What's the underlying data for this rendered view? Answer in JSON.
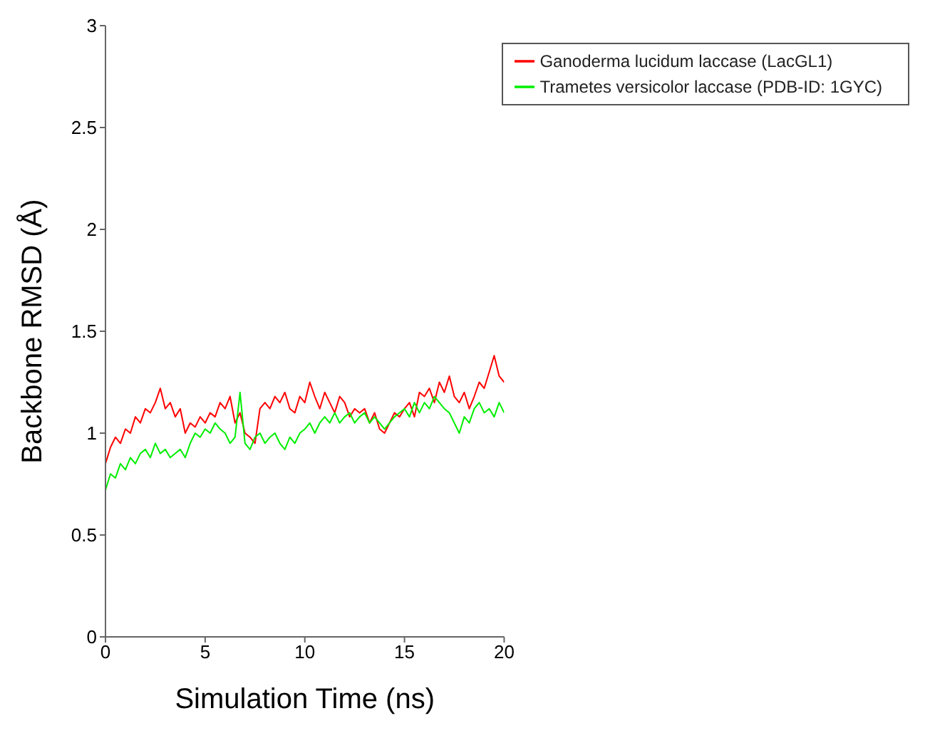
{
  "chart_data": {
    "type": "line",
    "xlabel": "Simulation Time (ns)",
    "ylabel": "Backbone RMSD (Å)",
    "x": [
      0,
      0.25,
      0.5,
      0.75,
      1,
      1.25,
      1.5,
      1.75,
      2,
      2.25,
      2.5,
      2.75,
      3,
      3.25,
      3.5,
      3.75,
      4,
      4.25,
      4.5,
      4.75,
      5,
      5.25,
      5.5,
      5.75,
      6,
      6.25,
      6.5,
      6.75,
      7,
      7.25,
      7.5,
      7.75,
      8,
      8.25,
      8.5,
      8.75,
      9,
      9.25,
      9.5,
      9.75,
      10,
      10.25,
      10.5,
      10.75,
      11,
      11.25,
      11.5,
      11.75,
      12,
      12.25,
      12.5,
      12.75,
      13,
      13.25,
      13.5,
      13.75,
      14,
      14.25,
      14.5,
      14.75,
      15,
      15.25,
      15.5,
      15.75,
      16,
      16.25,
      16.5,
      16.75,
      17,
      17.25,
      17.5,
      17.75,
      18,
      18.25,
      18.5,
      18.75,
      19,
      19.25,
      19.5,
      19.75,
      20
    ],
    "series": [
      {
        "name": "Ganoderma lucidum laccase (LacGL1)",
        "color": "#ff0000",
        "values": [
          0.85,
          0.93,
          0.98,
          0.95,
          1.02,
          1.0,
          1.08,
          1.05,
          1.12,
          1.1,
          1.15,
          1.22,
          1.12,
          1.15,
          1.08,
          1.12,
          1.0,
          1.05,
          1.03,
          1.08,
          1.05,
          1.1,
          1.08,
          1.15,
          1.12,
          1.18,
          1.05,
          1.1,
          1.0,
          0.98,
          0.95,
          1.12,
          1.15,
          1.12,
          1.18,
          1.15,
          1.2,
          1.12,
          1.1,
          1.18,
          1.15,
          1.25,
          1.18,
          1.12,
          1.2,
          1.15,
          1.1,
          1.18,
          1.15,
          1.08,
          1.12,
          1.1,
          1.12,
          1.05,
          1.1,
          1.02,
          1.0,
          1.05,
          1.1,
          1.08,
          1.12,
          1.15,
          1.08,
          1.2,
          1.18,
          1.22,
          1.15,
          1.25,
          1.2,
          1.28,
          1.18,
          1.15,
          1.2,
          1.12,
          1.18,
          1.25,
          1.22,
          1.3,
          1.38,
          1.28,
          1.25
        ]
      },
      {
        "name": "Trametes versicolor laccase (PDB-ID: 1GYC)",
        "color": "#00ee00",
        "values": [
          0.72,
          0.8,
          0.78,
          0.85,
          0.82,
          0.88,
          0.85,
          0.9,
          0.92,
          0.88,
          0.95,
          0.9,
          0.92,
          0.88,
          0.9,
          0.92,
          0.88,
          0.95,
          1.0,
          0.98,
          1.02,
          1.0,
          1.05,
          1.02,
          1.0,
          0.95,
          0.98,
          1.2,
          0.95,
          0.92,
          0.98,
          1.0,
          0.95,
          0.98,
          1.0,
          0.95,
          0.92,
          0.98,
          0.95,
          1.0,
          1.02,
          1.05,
          1.0,
          1.05,
          1.08,
          1.05,
          1.1,
          1.05,
          1.08,
          1.1,
          1.05,
          1.08,
          1.1,
          1.05,
          1.08,
          1.05,
          1.02,
          1.05,
          1.08,
          1.1,
          1.12,
          1.08,
          1.15,
          1.1,
          1.15,
          1.12,
          1.18,
          1.15,
          1.12,
          1.1,
          1.05,
          1.0,
          1.08,
          1.05,
          1.12,
          1.15,
          1.1,
          1.12,
          1.08,
          1.15,
          1.1
        ]
      }
    ],
    "xlim": [
      0,
      20
    ],
    "xticks": [
      0,
      5,
      10,
      15,
      20
    ],
    "ylim": [
      0,
      3
    ],
    "yticks": [
      0,
      0.5,
      1,
      1.5,
      2,
      2.5,
      3
    ],
    "legend": "top right",
    "marker": "none",
    "line_style": "solid"
  }
}
